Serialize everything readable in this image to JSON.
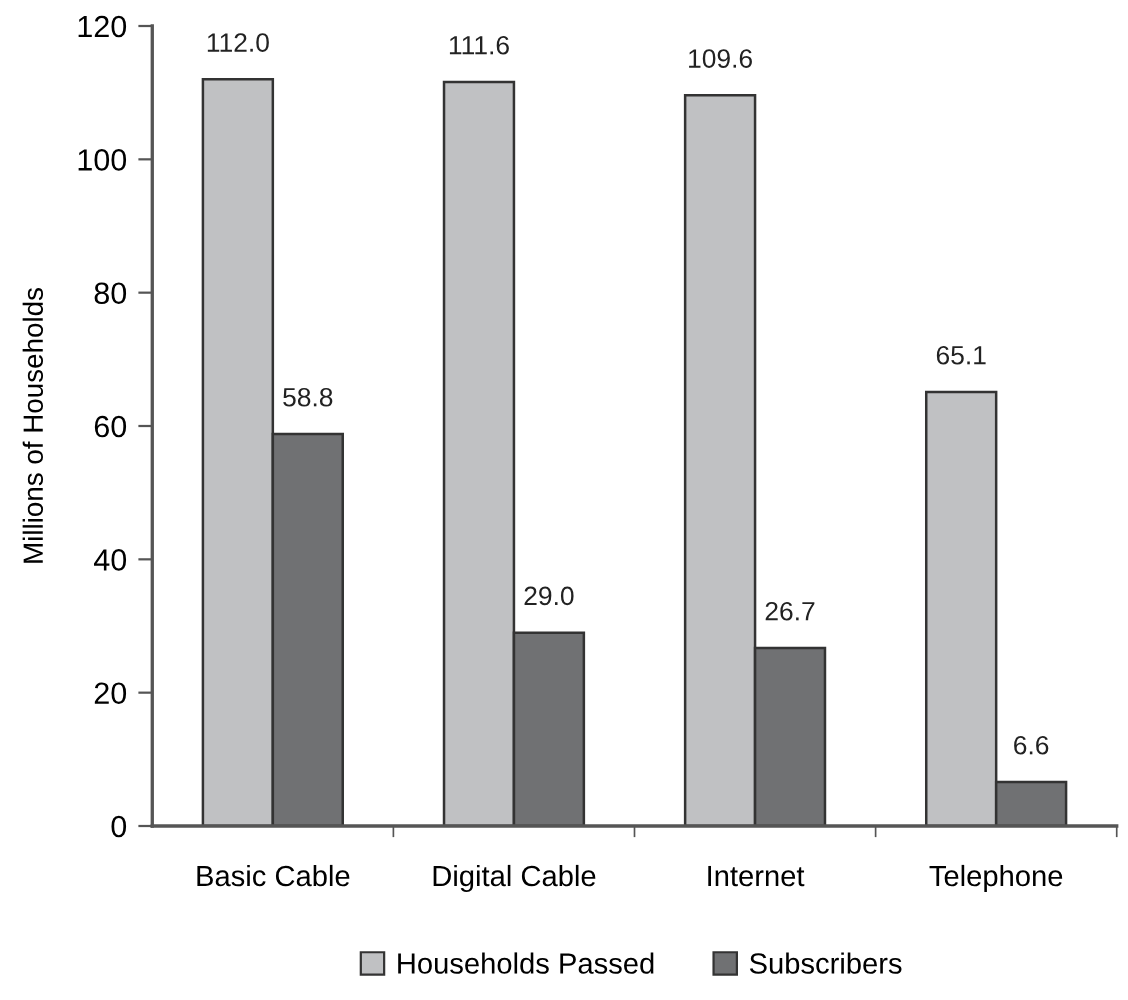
{
  "chart_data": {
    "type": "bar",
    "ylabel": "Millions of Households",
    "categories": [
      "Basic Cable",
      "Digital Cable",
      "Internet",
      "Telephone"
    ],
    "series": [
      {
        "name": "Households Passed",
        "color": "#c0c1c3",
        "values": [
          112.0,
          111.6,
          109.6,
          65.1
        ],
        "value_labels": [
          "112.0",
          "111.6",
          "109.6",
          "65.1"
        ]
      },
      {
        "name": "Subscribers",
        "color": "#707173",
        "values": [
          58.8,
          29.0,
          26.7,
          6.6
        ],
        "value_labels": [
          "58.8",
          "29.0",
          "26.7",
          "6.6"
        ]
      }
    ],
    "ylim": [
      0,
      120
    ],
    "yticks": [
      0,
      20,
      40,
      60,
      80,
      100,
      120
    ],
    "legend": "bottom",
    "grid": false
  }
}
